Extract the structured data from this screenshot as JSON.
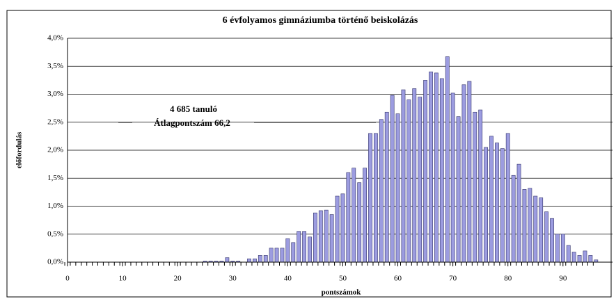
{
  "chart_data": {
    "type": "bar",
    "title": "6 évfolyamos gimnáziumba történő beiskolázás",
    "xlabel": "pontszámok",
    "ylabel": "előfordulás",
    "annotations": [
      "4 685 tanuló",
      "Átlagpontszám 66,2"
    ],
    "x": [
      0,
      1,
      2,
      3,
      4,
      5,
      6,
      7,
      8,
      9,
      10,
      11,
      12,
      13,
      14,
      15,
      16,
      17,
      18,
      19,
      20,
      21,
      22,
      23,
      24,
      25,
      26,
      27,
      28,
      29,
      30,
      31,
      32,
      33,
      34,
      35,
      36,
      37,
      38,
      39,
      40,
      41,
      42,
      43,
      44,
      45,
      46,
      47,
      48,
      49,
      50,
      51,
      52,
      53,
      54,
      55,
      56,
      57,
      58,
      59,
      60,
      61,
      62,
      63,
      64,
      65,
      66,
      67,
      68,
      69,
      70,
      71,
      72,
      73,
      74,
      75,
      76,
      77,
      78,
      79,
      80,
      81,
      82,
      83,
      84,
      85,
      86,
      87,
      88,
      89,
      90,
      91,
      92,
      93,
      94,
      95,
      96
    ],
    "values": [
      0,
      0,
      0,
      0,
      0,
      0,
      0,
      0,
      0,
      0,
      0,
      0,
      0,
      0,
      0,
      0,
      0,
      0,
      0,
      0,
      0,
      0,
      0,
      0,
      0,
      0.02,
      0.02,
      0.02,
      0.02,
      0.08,
      0.02,
      0.02,
      0,
      0.06,
      0.06,
      0.12,
      0.12,
      0.25,
      0.25,
      0.25,
      0.42,
      0.35,
      0.55,
      0.55,
      0.45,
      0.88,
      0.92,
      0.93,
      0.85,
      1.18,
      1.22,
      1.6,
      1.68,
      1.42,
      1.68,
      2.3,
      2.3,
      2.55,
      2.68,
      2.98,
      2.65,
      3.08,
      2.9,
      3.1,
      2.95,
      3.25,
      3.4,
      3.38,
      3.28,
      3.67,
      3.02,
      2.6,
      3.17,
      3.23,
      2.68,
      2.72,
      2.05,
      2.25,
      2.13,
      2.03,
      2.3,
      1.55,
      1.75,
      1.3,
      1.32,
      1.18,
      1.15,
      0.9,
      0.78,
      0.5,
      0.5,
      0.3,
      0.18,
      0.12,
      0.2,
      0.12,
      0.04
    ],
    "color": "#9c9ce0",
    "xlim": [
      0,
      99
    ],
    "xticks": [
      0,
      10,
      20,
      30,
      40,
      50,
      60,
      70,
      80,
      90
    ],
    "ylim": [
      0,
      4
    ],
    "yticks": [
      {
        "value": 0,
        "label": "0,0%"
      },
      {
        "value": 0.5,
        "label": "0,5%"
      },
      {
        "value": 1,
        "label": "1,0%"
      },
      {
        "value": 1.5,
        "label": "1,5%"
      },
      {
        "value": 2,
        "label": "2,0%"
      },
      {
        "value": 2.5,
        "label": "2,5%"
      },
      {
        "value": 3,
        "label": "3,0%"
      },
      {
        "value": 3.5,
        "label": "3,5%"
      },
      {
        "value": 4,
        "label": "4,0%"
      }
    ],
    "grid": true
  }
}
